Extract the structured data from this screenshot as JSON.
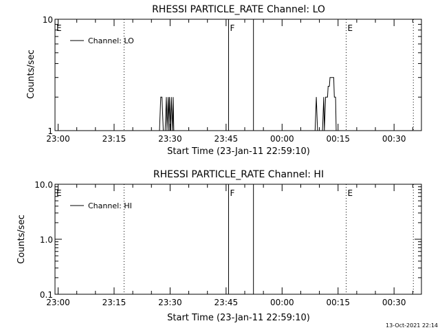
{
  "footer_stamp": "13-Oct-2021 22:14",
  "chart_data": [
    {
      "type": "line",
      "title": "RHESSI PARTICLE_RATE Channel: LO",
      "xlabel": "Start Time (23-Jan-11 22:59:10)",
      "ylabel": "Counts/sec",
      "y_scale": "log",
      "ylim": [
        1,
        10
      ],
      "xlim": [
        "22:59:10",
        "00:37:20"
      ],
      "ytick_labels": [
        {
          "v": 1,
          "label": "1"
        },
        {
          "v": 10,
          "label": "10"
        }
      ],
      "xticks": [
        {
          "t": "23:00",
          "label": "23:00"
        },
        {
          "t": "23:15",
          "label": "23:15"
        },
        {
          "t": "23:30",
          "label": "23:30"
        },
        {
          "t": "23:45",
          "label": "23:45"
        },
        {
          "t": "00:00",
          "label": "00:00"
        },
        {
          "t": "00:15",
          "label": "00:15"
        },
        {
          "t": "00:30",
          "label": "00:30"
        }
      ],
      "legend": {
        "entry": "Channel: LO",
        "placement": "top-left"
      },
      "markers": [
        {
          "t": "22:59:10",
          "label": "E",
          "style": "dotted"
        },
        {
          "t": "23:17:40",
          "label": "",
          "style": "dotted"
        },
        {
          "t": "23:45:40",
          "label": "F",
          "style": "solid"
        },
        {
          "t": "23:52:20",
          "label": "",
          "style": "solid"
        },
        {
          "t": "00:17:10",
          "label": "E",
          "style": "dotted"
        },
        {
          "t": "00:35:10",
          "label": "",
          "style": "dotted"
        }
      ],
      "series": [
        {
          "name": "Channel: LO",
          "segments": [
            [
              [
                "23:27:10",
                1
              ],
              [
                "23:27:30",
                2
              ],
              [
                "23:27:50",
                2
              ],
              [
                "23:28:10",
                1
              ],
              [
                "23:28:40",
                1
              ],
              [
                "23:29:00",
                2
              ],
              [
                "23:29:10",
                1
              ],
              [
                "23:29:30",
                2
              ],
              [
                "23:29:40",
                1
              ],
              [
                "23:29:50",
                2
              ],
              [
                "23:30:10",
                1
              ],
              [
                "23:30:20",
                2
              ],
              [
                "23:30:40",
                1
              ],
              [
                "23:30:50",
                2
              ],
              [
                "23:31:00",
                1
              ]
            ],
            [
              [
                "00:08:50",
                1
              ],
              [
                "00:09:10",
                2
              ],
              [
                "00:09:30",
                1
              ],
              [
                "00:10:50",
                1
              ],
              [
                "00:11:10",
                2
              ],
              [
                "00:11:20",
                1
              ],
              [
                "00:11:40",
                2
              ],
              [
                "00:12:10",
                2
              ],
              [
                "00:12:20",
                2.5
              ],
              [
                "00:12:40",
                2.5
              ],
              [
                "00:12:50",
                3
              ],
              [
                "00:13:50",
                3
              ],
              [
                "00:14:00",
                2
              ],
              [
                "00:14:20",
                2
              ],
              [
                "00:14:30",
                1
              ],
              [
                "00:14:40",
                1
              ]
            ]
          ]
        }
      ]
    },
    {
      "type": "line",
      "title": "RHESSI PARTICLE_RATE Channel: HI",
      "xlabel": "Start Time (23-Jan-11 22:59:10)",
      "ylabel": "Counts/sec",
      "y_scale": "log",
      "ylim": [
        0.1,
        10
      ],
      "xlim": [
        "22:59:10",
        "00:37:20"
      ],
      "ytick_labels": [
        {
          "v": 0.1,
          "label": "0.1"
        },
        {
          "v": 1,
          "label": "1.0"
        },
        {
          "v": 10,
          "label": "10.0"
        }
      ],
      "xticks": [
        {
          "t": "23:00",
          "label": "23:00"
        },
        {
          "t": "23:15",
          "label": "23:15"
        },
        {
          "t": "23:30",
          "label": "23:30"
        },
        {
          "t": "23:45",
          "label": "23:45"
        },
        {
          "t": "00:00",
          "label": "00:00"
        },
        {
          "t": "00:15",
          "label": "00:15"
        },
        {
          "t": "00:30",
          "label": "00:30"
        }
      ],
      "legend": {
        "entry": "Channel: HI",
        "placement": "top-left"
      },
      "markers": [
        {
          "t": "22:59:10",
          "label": "E",
          "style": "dotted"
        },
        {
          "t": "23:17:40",
          "label": "",
          "style": "dotted"
        },
        {
          "t": "23:45:40",
          "label": "F",
          "style": "solid"
        },
        {
          "t": "23:52:20",
          "label": "",
          "style": "solid"
        },
        {
          "t": "00:17:10",
          "label": "E",
          "style": "dotted"
        },
        {
          "t": "00:35:10",
          "label": "",
          "style": "dotted"
        }
      ],
      "series": [
        {
          "name": "Channel: HI",
          "segments": []
        }
      ]
    }
  ]
}
